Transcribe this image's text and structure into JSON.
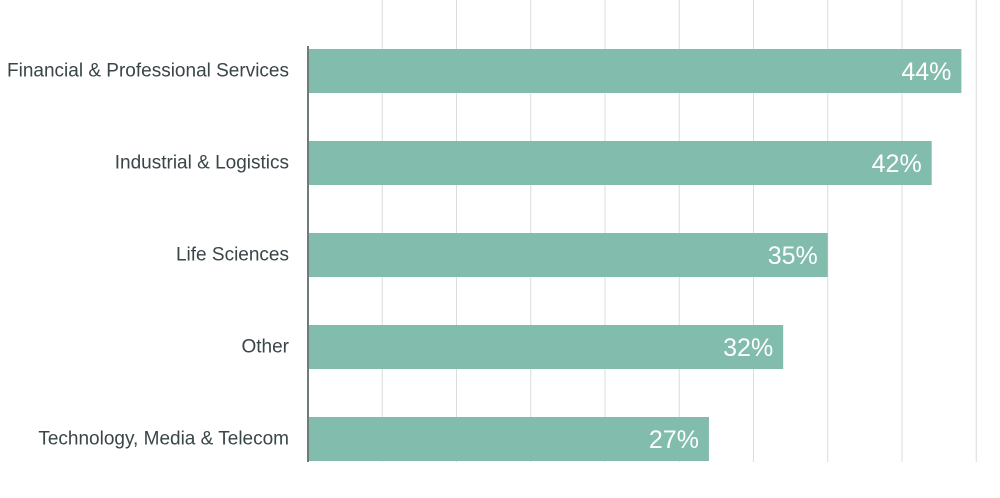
{
  "chart_data": {
    "type": "bar",
    "orientation": "horizontal",
    "title": "",
    "xlabel": "",
    "ylabel": "",
    "categories": [
      "Financial & Professional Services",
      "Industrial & Logistics",
      "Life Sciences",
      "Other",
      "Technology, Media & Telecom"
    ],
    "values": [
      44,
      42,
      35,
      32,
      27
    ],
    "value_labels": [
      "44%",
      "42%",
      "35%",
      "32%",
      "27%"
    ],
    "xlim": [
      0,
      45
    ],
    "grid": true,
    "legend": "none",
    "bar_color": "#82bcac",
    "value_label_color": "#ffffff",
    "category_label_color": "#3a4547",
    "grid_color": "#dcdcdc",
    "axis_color": "#6f7a7a"
  }
}
